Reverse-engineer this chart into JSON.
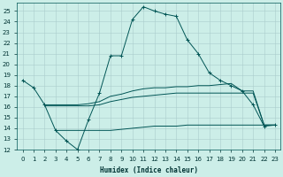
{
  "xlabel": "Humidex (Indice chaleur)",
  "background_color": "#cceee8",
  "grid_color": "#aacccc",
  "line_color": "#005555",
  "xlim": [
    -0.5,
    23.5
  ],
  "ylim": [
    12,
    25.8
  ],
  "yticks": [
    12,
    13,
    14,
    15,
    16,
    17,
    18,
    19,
    20,
    21,
    22,
    23,
    24,
    25
  ],
  "xticks": [
    0,
    1,
    2,
    3,
    4,
    5,
    6,
    7,
    8,
    9,
    10,
    11,
    12,
    13,
    14,
    15,
    16,
    17,
    18,
    19,
    20,
    21,
    22,
    23
  ],
  "line1_x": [
    0,
    1,
    2,
    3,
    4,
    5,
    6,
    7,
    8,
    9,
    10,
    11,
    12,
    13,
    14,
    15,
    16,
    17,
    18,
    19,
    20,
    21,
    22,
    23
  ],
  "line1_y": [
    18.5,
    17.8,
    16.2,
    13.8,
    12.8,
    12.0,
    14.8,
    17.3,
    20.8,
    20.8,
    24.2,
    25.4,
    25.0,
    24.7,
    24.5,
    22.3,
    21.0,
    19.2,
    18.5,
    18.0,
    17.5,
    16.2,
    14.2,
    14.3
  ],
  "line2_x": [
    2,
    3,
    4,
    5,
    6,
    7,
    8,
    9,
    10,
    11,
    12,
    13,
    14,
    15,
    16,
    17,
    18,
    19,
    20,
    21,
    22,
    23
  ],
  "line2_y": [
    16.2,
    16.2,
    16.2,
    16.2,
    16.3,
    16.5,
    17.0,
    17.2,
    17.5,
    17.7,
    17.8,
    17.8,
    17.9,
    17.9,
    18.0,
    18.0,
    18.1,
    18.2,
    17.5,
    17.5,
    14.3,
    14.3
  ],
  "line3_x": [
    2,
    3,
    4,
    5,
    6,
    7,
    8,
    9,
    10,
    11,
    12,
    13,
    14,
    15,
    16,
    17,
    18,
    19,
    20,
    21,
    22,
    23
  ],
  "line3_y": [
    16.1,
    16.1,
    16.1,
    16.1,
    16.1,
    16.2,
    16.5,
    16.7,
    16.9,
    17.0,
    17.1,
    17.2,
    17.3,
    17.3,
    17.3,
    17.3,
    17.3,
    17.3,
    17.3,
    17.3,
    14.3,
    14.3
  ],
  "line4_x": [
    3,
    4,
    5,
    6,
    7,
    8,
    9,
    10,
    11,
    12,
    13,
    14,
    15,
    16,
    17,
    18,
    19,
    20,
    21,
    22,
    23
  ],
  "line4_y": [
    13.8,
    13.8,
    13.8,
    13.8,
    13.8,
    13.8,
    13.9,
    14.0,
    14.1,
    14.2,
    14.2,
    14.2,
    14.3,
    14.3,
    14.3,
    14.3,
    14.3,
    14.3,
    14.3,
    14.3,
    14.3
  ]
}
